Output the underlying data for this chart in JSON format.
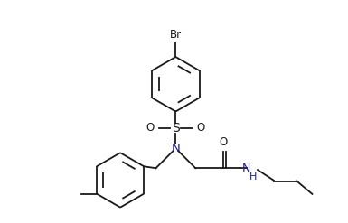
{
  "bg_color": "#ffffff",
  "line_color": "#1a1a1a",
  "label_color_N": "#1a1a8a",
  "label_color_O": "#1a1a1a",
  "label_color_S": "#1a1a1a",
  "label_color_Br": "#1a1a1a",
  "figsize": [
    3.85,
    2.47
  ],
  "dpi": 100,
  "xlim": [
    0,
    10
  ],
  "ylim": [
    0,
    6.5
  ]
}
